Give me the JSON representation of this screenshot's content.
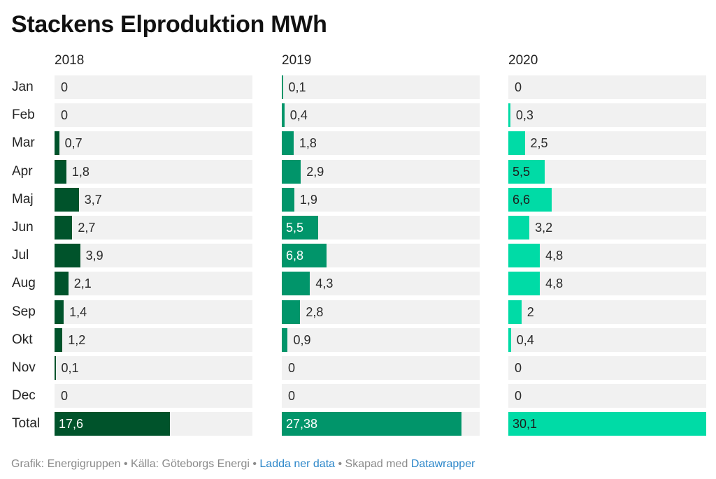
{
  "chart_data": {
    "type": "bar",
    "title": "Stackens Elproduktion MWh",
    "categories": [
      "Jan",
      "Feb",
      "Mar",
      "Apr",
      "Maj",
      "Jun",
      "Jul",
      "Aug",
      "Sep",
      "Okt",
      "Nov",
      "Dec",
      "Total"
    ],
    "series": [
      {
        "name": "2018",
        "color": "#00532b",
        "values": [
          0,
          0,
          0.7,
          1.8,
          3.7,
          2.7,
          3.9,
          2.1,
          1.4,
          1.2,
          0.1,
          0,
          17.6
        ],
        "labels": [
          "0",
          "0",
          "0,7",
          "1,8",
          "3,7",
          "2,7",
          "3,9",
          "2,1",
          "1,4",
          "1,2",
          "0,1",
          "0",
          "17,6"
        ]
      },
      {
        "name": "2019",
        "color": "#01956a",
        "values": [
          0.1,
          0.4,
          1.8,
          2.9,
          1.9,
          5.5,
          6.8,
          4.3,
          2.8,
          0.9,
          0,
          0,
          27.38
        ],
        "labels": [
          "0,1",
          "0,4",
          "1,8",
          "2,9",
          "1,9",
          "5,5",
          "6,8",
          "4,3",
          "2,8",
          "0,9",
          "0",
          "0",
          "27,38"
        ]
      },
      {
        "name": "2020",
        "color": "#00dba6",
        "values": [
          0,
          0.3,
          2.5,
          5.5,
          6.6,
          3.2,
          4.8,
          4.8,
          2,
          0.4,
          0,
          0,
          30.1
        ],
        "labels": [
          "0",
          "0,3",
          "2,5",
          "5,5",
          "6,6",
          "3,2",
          "4,8",
          "4,8",
          "2",
          "0,4",
          "0",
          "0",
          "30,1"
        ]
      }
    ],
    "track_color": "#f1f1f1"
  },
  "footer": {
    "credit": "Grafik: Energigruppen • Källa: Göteborgs Energi • ",
    "download_link": "Ladda ner data",
    "made_with": " • Skapad med ",
    "tool_link": "Datawrapper"
  }
}
